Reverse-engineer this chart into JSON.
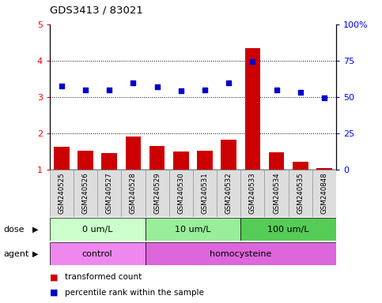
{
  "title": "GDS3413 / 83021",
  "samples": [
    "GSM240525",
    "GSM240526",
    "GSM240527",
    "GSM240528",
    "GSM240529",
    "GSM240530",
    "GSM240531",
    "GSM240532",
    "GSM240533",
    "GSM240534",
    "GSM240535",
    "GSM240848"
  ],
  "transformed_count": [
    1.62,
    1.52,
    1.45,
    1.92,
    1.65,
    1.5,
    1.52,
    1.82,
    4.35,
    1.48,
    1.22,
    1.05
  ],
  "percentile_rank": [
    57.5,
    55.0,
    55.0,
    59.5,
    57.0,
    54.5,
    55.0,
    59.5,
    74.5,
    55.0,
    53.0,
    49.5
  ],
  "bar_color": "#cc0000",
  "dot_color": "#0000cc",
  "ylim_left": [
    1,
    5
  ],
  "ylim_right": [
    0,
    100
  ],
  "yticks_left": [
    1,
    2,
    3,
    4,
    5
  ],
  "ytick_labels_left": [
    "1",
    "2",
    "3",
    "4",
    "5"
  ],
  "ytick_labels_right": [
    "0",
    "25",
    "50",
    "75",
    "100%"
  ],
  "dose_groups": [
    {
      "label": "0 um/L",
      "start": 0,
      "end": 4,
      "color": "#ccffcc"
    },
    {
      "label": "10 um/L",
      "start": 4,
      "end": 8,
      "color": "#99ee99"
    },
    {
      "label": "100 um/L",
      "start": 8,
      "end": 12,
      "color": "#55cc55"
    }
  ],
  "agent_groups": [
    {
      "label": "control",
      "start": 0,
      "end": 4,
      "color": "#ee88ee"
    },
    {
      "label": "homocysteine",
      "start": 4,
      "end": 12,
      "color": "#dd66dd"
    }
  ],
  "dose_label": "dose",
  "agent_label": "agent",
  "legend_bar_label": "transformed count",
  "legend_dot_label": "percentile rank within the sample",
  "bg_color": "#ffffff",
  "sample_bg_color": "#dddddd",
  "sample_border_color": "#999999"
}
